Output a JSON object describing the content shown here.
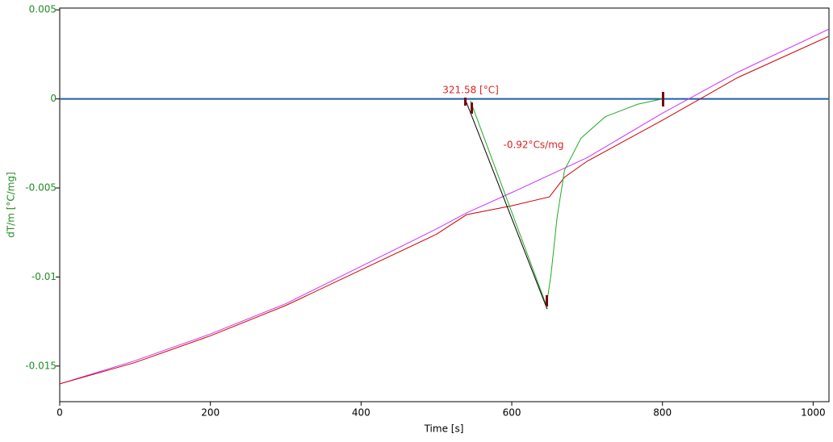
{
  "chart_data": {
    "type": "line",
    "xlabel": "Time [s]",
    "ylabel": "dT/m  [°C/mg]",
    "annotations": [
      "321.58 [°C]",
      "-0.92°Cs/mg"
    ],
    "xlim": [
      0,
      1021
    ],
    "ylim": [
      -0.017,
      0.0051
    ],
    "xticks": [
      0,
      200,
      400,
      600,
      800,
      1000
    ],
    "yticks": [
      0.005,
      0,
      -0.005,
      -0.01,
      -0.015
    ],
    "series": [
      {
        "color": "#1f5fa8",
        "x": [
          0,
          1021
        ],
        "values": [
          0,
          0
        ]
      },
      {
        "color": "#cc33ff",
        "x": [
          0,
          100,
          200,
          300,
          400,
          500,
          540,
          600,
          700,
          800,
          900,
          1020
        ],
        "values": [
          -0.016,
          -0.0147,
          -0.0132,
          -0.0115,
          -0.0094,
          -0.0073,
          -0.0064,
          -0.00526,
          -0.0033,
          -0.0008,
          0.0015,
          0.0039
        ]
      },
      {
        "color": "#cc0000",
        "x": [
          0,
          100,
          200,
          300,
          400,
          500,
          540,
          600,
          650,
          670,
          700,
          800,
          900,
          1020
        ],
        "values": [
          -0.016,
          -0.0148,
          -0.0133,
          -0.0116,
          -0.0096,
          -0.0076,
          -0.0065,
          -0.006,
          -0.0055,
          -0.0044,
          -0.0035,
          -0.0012,
          0.0012,
          0.0035
        ]
      },
      {
        "color": "#22aa22",
        "x": [
          545,
          646,
          652,
          660,
          670,
          692,
          724,
          767,
          800
        ],
        "values": [
          -0.0001,
          -0.0116,
          -0.0099,
          -0.0067,
          -0.004,
          -0.0022,
          -0.001,
          -0.0003,
          0
        ]
      },
      {
        "color": "#000000",
        "x": [
          538,
          647
        ],
        "values": [
          0,
          -0.0118
        ]
      }
    ]
  }
}
